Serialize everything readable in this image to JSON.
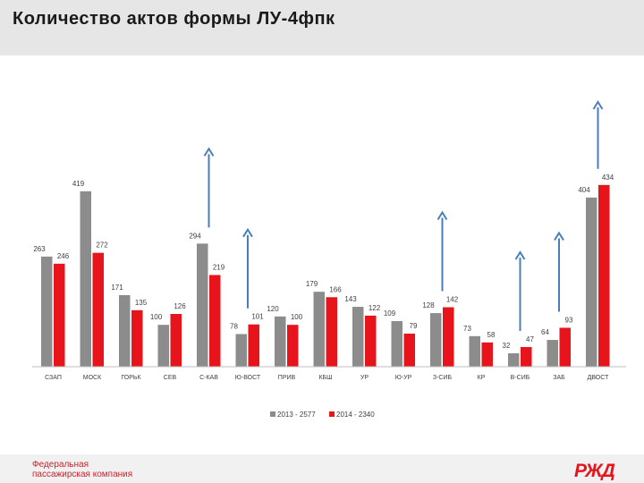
{
  "header": {
    "title": "Количество актов формы ЛУ-4фпк"
  },
  "footer": {
    "company_line1": "Федеральная",
    "company_line2": "пассажирская компания",
    "logo_text": "РЖД"
  },
  "colors": {
    "series_2013": "#8c8c8c",
    "series_2014": "#e8141c",
    "arrow": "#4a7ebb",
    "axis": "#bfbfbf"
  },
  "chart_data": {
    "type": "bar",
    "title": "",
    "categories": [
      "СЗАП",
      "МОСК",
      "ГОРЬК",
      "СЕВ",
      "С-КАВ",
      "Ю-ВОСТ",
      "ПРИВ",
      "КБШ",
      "УР",
      "Ю-УР",
      "З-СИБ",
      "КР",
      "В-СИБ",
      "ЗАБ",
      "ДВОСТ"
    ],
    "series": [
      {
        "name": "2013 - 2577",
        "values": [
          263,
          419,
          171,
          100,
          294,
          78,
          120,
          179,
          143,
          109,
          128,
          73,
          32,
          64,
          404
        ]
      },
      {
        "name": "2014 - 2340",
        "values": [
          246,
          272,
          135,
          126,
          219,
          101,
          100,
          166,
          122,
          79,
          142,
          58,
          47,
          93,
          434
        ]
      }
    ],
    "arrows_up_categories": [
      "С-КАВ",
      "Ю-ВОСТ",
      "З-СИБ",
      "В-СИБ",
      "ЗАБ",
      "ДВОСТ"
    ],
    "ylim": [
      0,
      440
    ],
    "legend_position": "bottom",
    "xlabel": "",
    "ylabel": ""
  }
}
